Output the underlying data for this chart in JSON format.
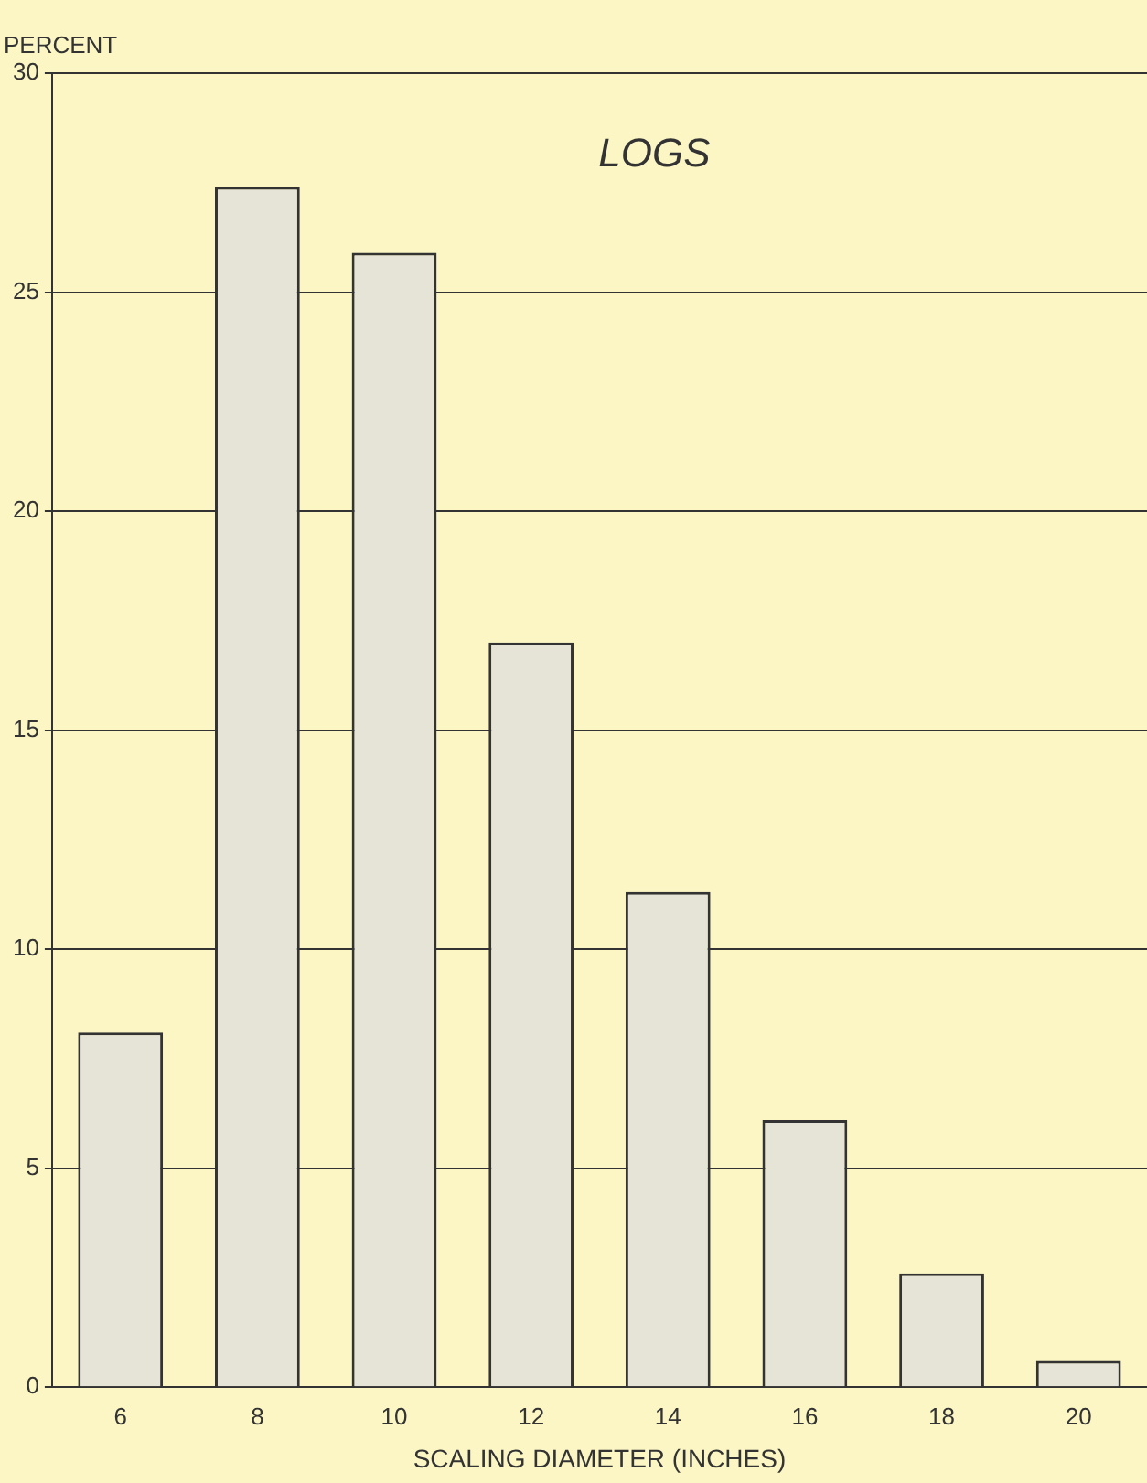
{
  "chart_data": {
    "type": "bar",
    "title": "LOGS",
    "xlabel": "SCALING DIAMETER (INCHES)",
    "ylabel": "PERCENT",
    "categories": [
      "6",
      "8",
      "10",
      "12",
      "14",
      "16",
      "18",
      "20"
    ],
    "values": [
      8.1,
      27.4,
      25.9,
      17.0,
      11.3,
      6.1,
      2.6,
      0.6
    ],
    "color": "#e6e4d6",
    "ylim": [
      0,
      30
    ],
    "yticks": [
      0,
      5,
      10,
      15,
      20,
      25,
      30
    ],
    "grid": "y"
  }
}
